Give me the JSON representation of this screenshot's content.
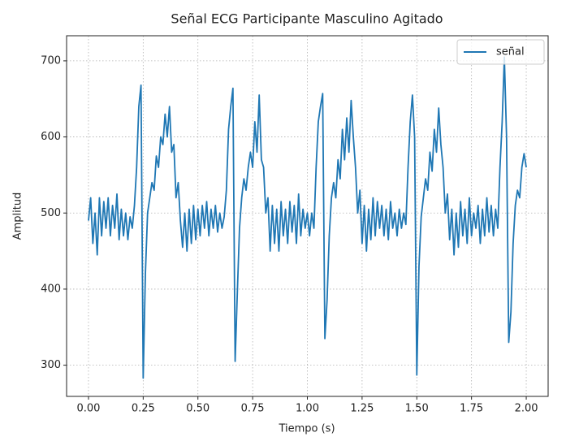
{
  "chart_data": {
    "type": "line",
    "title": "Señal ECG Participante Masculino Agitado",
    "xlabel": "Tiempo (s)",
    "ylabel": "Amplitud",
    "x": [
      0,
      0.01,
      0.02,
      0.03,
      0.04,
      0.05,
      0.06,
      0.07,
      0.08,
      0.09,
      0.1,
      0.11,
      0.12,
      0.13,
      0.14,
      0.15,
      0.16,
      0.17,
      0.18,
      0.19,
      0.2,
      0.21,
      0.22,
      0.23,
      0.24,
      0.25,
      0.26,
      0.27,
      0.28,
      0.29,
      0.3,
      0.31,
      0.32,
      0.33,
      0.34,
      0.35,
      0.36,
      0.37,
      0.38,
      0.39,
      0.4,
      0.41,
      0.42,
      0.43,
      0.44,
      0.45,
      0.46,
      0.47,
      0.48,
      0.49,
      0.5,
      0.51,
      0.52,
      0.53,
      0.54,
      0.55,
      0.56,
      0.57,
      0.58,
      0.59,
      0.6,
      0.61,
      0.62,
      0.63,
      0.64,
      0.65,
      0.66,
      0.67,
      0.68,
      0.69,
      0.7,
      0.71,
      0.72,
      0.73,
      0.74,
      0.75,
      0.76,
      0.77,
      0.78,
      0.79,
      0.8,
      0.81,
      0.82,
      0.83,
      0.84,
      0.85,
      0.86,
      0.87,
      0.88,
      0.89,
      0.9,
      0.91,
      0.92,
      0.93,
      0.94,
      0.95,
      0.96,
      0.97,
      0.98,
      0.99,
      1,
      1.01,
      1.02,
      1.03,
      1.04,
      1.05,
      1.06,
      1.07,
      1.08,
      1.09,
      1.1,
      1.11,
      1.12,
      1.13,
      1.14,
      1.15,
      1.16,
      1.17,
      1.18,
      1.19,
      1.2,
      1.21,
      1.22,
      1.23,
      1.24,
      1.25,
      1.26,
      1.27,
      1.28,
      1.29,
      1.3,
      1.31,
      1.32,
      1.33,
      1.34,
      1.35,
      1.36,
      1.37,
      1.38,
      1.39,
      1.4,
      1.41,
      1.42,
      1.43,
      1.44,
      1.45,
      1.46,
      1.47,
      1.48,
      1.49,
      1.5,
      1.51,
      1.52,
      1.53,
      1.54,
      1.55,
      1.56,
      1.57,
      1.58,
      1.59,
      1.6,
      1.61,
      1.62,
      1.63,
      1.64,
      1.65,
      1.66,
      1.67,
      1.68,
      1.69,
      1.7,
      1.71,
      1.72,
      1.73,
      1.74,
      1.75,
      1.76,
      1.77,
      1.78,
      1.79,
      1.8,
      1.81,
      1.82,
      1.83,
      1.84,
      1.85,
      1.86,
      1.87,
      1.88,
      1.89,
      1.9,
      1.91,
      1.92,
      1.93,
      1.94,
      1.95,
      1.96,
      1.97,
      1.98,
      1.99,
      2
    ],
    "series": [
      {
        "name": "señal",
        "color": "#1f77b4",
        "values": [
          490,
          520,
          460,
          500,
          445,
          520,
          470,
          515,
          480,
          520,
          470,
          510,
          480,
          525,
          465,
          505,
          470,
          500,
          465,
          495,
          480,
          510,
          560,
          640,
          668,
          283,
          420,
          500,
          520,
          540,
          530,
          575,
          560,
          600,
          590,
          630,
          600,
          640,
          580,
          590,
          520,
          540,
          490,
          455,
          500,
          450,
          505,
          460,
          510,
          465,
          505,
          470,
          510,
          480,
          515,
          470,
          505,
          480,
          510,
          475,
          500,
          480,
          495,
          530,
          610,
          640,
          664,
          305,
          395,
          480,
          520,
          545,
          530,
          560,
          580,
          560,
          620,
          580,
          655,
          570,
          560,
          500,
          520,
          450,
          510,
          460,
          505,
          450,
          515,
          470,
          505,
          460,
          515,
          475,
          510,
          460,
          525,
          470,
          505,
          480,
          500,
          470,
          500,
          480,
          560,
          620,
          640,
          657,
          335,
          385,
          470,
          520,
          540,
          520,
          570,
          545,
          610,
          570,
          625,
          580,
          648,
          600,
          560,
          500,
          530,
          460,
          510,
          450,
          505,
          465,
          520,
          470,
          515,
          480,
          510,
          470,
          505,
          465,
          515,
          480,
          500,
          470,
          505,
          480,
          500,
          485,
          560,
          620,
          655,
          600,
          287,
          430,
          495,
          520,
          545,
          530,
          580,
          555,
          610,
          580,
          638,
          590,
          560,
          500,
          525,
          465,
          505,
          445,
          500,
          455,
          515,
          470,
          505,
          460,
          520,
          470,
          500,
          480,
          510,
          460,
          505,
          470,
          520,
          475,
          510,
          470,
          505,
          480,
          560,
          620,
          705,
          600,
          330,
          370,
          460,
          510,
          530,
          520,
          560,
          578,
          560
        ]
      }
    ],
    "xlim": [
      -0.1,
      2.1
    ],
    "ylim": [
      259,
      733
    ],
    "xticks": [
      {
        "value": 0,
        "label": "0.00"
      },
      {
        "value": 0.25,
        "label": "0.25"
      },
      {
        "value": 0.5,
        "label": "0.50"
      },
      {
        "value": 0.75,
        "label": "0.75"
      },
      {
        "value": 1,
        "label": "1.00"
      },
      {
        "value": 1.25,
        "label": "1.25"
      },
      {
        "value": 1.5,
        "label": "1.50"
      },
      {
        "value": 1.75,
        "label": "1.75"
      },
      {
        "value": 2,
        "label": "2.00"
      }
    ],
    "yticks": [
      300,
      400,
      500,
      600,
      700
    ],
    "grid": true,
    "legend": "upper right"
  }
}
